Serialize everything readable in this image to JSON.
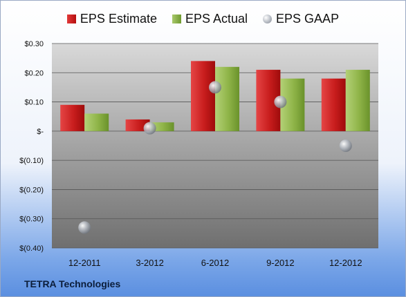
{
  "chart_data": {
    "type": "bar",
    "categories": [
      "12-2011",
      "3-2012",
      "6-2012",
      "9-2012",
      "12-2012"
    ],
    "series": [
      {
        "name": "EPS Estimate",
        "kind": "bar",
        "color": "#c81d1d",
        "values": [
          0.09,
          0.04,
          0.24,
          0.21,
          0.18
        ]
      },
      {
        "name": "EPS Actual",
        "kind": "bar",
        "color": "#8fb448",
        "values": [
          0.06,
          0.03,
          0.22,
          0.18,
          0.21
        ]
      },
      {
        "name": "EPS GAAP",
        "kind": "marker",
        "color": "#b7bcc4",
        "values": [
          -0.33,
          0.01,
          0.15,
          0.1,
          -0.05
        ]
      }
    ],
    "yticks": [
      "$0.30",
      "$0.20",
      "$0.10",
      "$-",
      "$(0.10)",
      "$(0.20)",
      "$(0.30)",
      "$(0.40)"
    ],
    "ylim": [
      -0.4,
      0.3
    ],
    "grid": true,
    "legend": "top-center"
  },
  "company": "TETRA Technologies"
}
